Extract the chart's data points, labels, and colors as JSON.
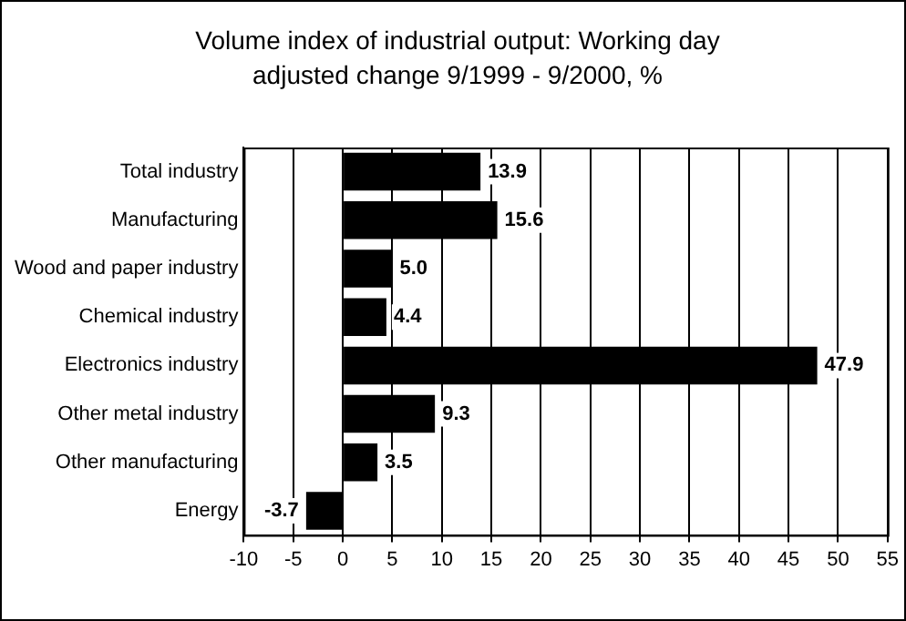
{
  "chart_data": {
    "type": "bar",
    "orientation": "horizontal",
    "title": "Volume index of industrial output: Working day adjusted change 9/1999 - 9/2000, %",
    "categories": [
      "Total industry",
      "Manufacturing",
      "Wood and paper industry",
      "Chemical industry",
      "Electronics industry",
      "Other metal industry",
      "Other manufacturing",
      "Energy"
    ],
    "values": [
      13.9,
      15.6,
      5.0,
      4.4,
      47.9,
      9.3,
      3.5,
      -3.7
    ],
    "value_labels": [
      "13.9",
      "15.6",
      "5.0",
      "4.4",
      "47.9",
      "9.3",
      "3.5",
      "-3.7"
    ],
    "color": "#000000",
    "xlim": [
      -10,
      55
    ],
    "xticks": [
      -10,
      -5,
      0,
      5,
      10,
      15,
      20,
      25,
      30,
      35,
      40,
      45,
      50,
      55
    ],
    "grid": "x",
    "legend": false
  }
}
